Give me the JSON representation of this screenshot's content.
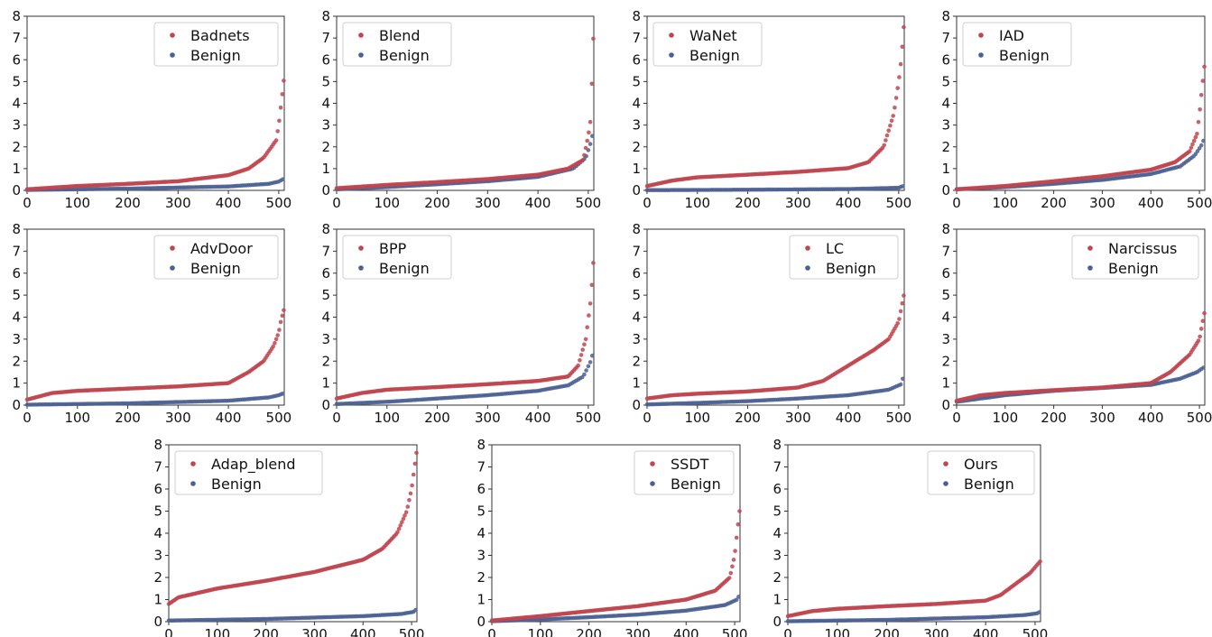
{
  "colors": {
    "backdoor": "#c0454f",
    "benign": "#4a5f93"
  },
  "chart_data": [
    {
      "type": "scatter",
      "legend": "top-right",
      "xlim": [
        0,
        511
      ],
      "ylim": [
        0,
        8
      ],
      "xticks": [
        0,
        100,
        200,
        300,
        400,
        500
      ],
      "yticks": [
        0,
        1,
        2,
        3,
        4,
        5,
        6,
        7,
        8
      ],
      "series": [
        {
          "name": "Badnets",
          "curve": [
            [
              0,
              0.05
            ],
            [
              100,
              0.2
            ],
            [
              200,
              0.3
            ],
            [
              300,
              0.42
            ],
            [
              400,
              0.7
            ],
            [
              440,
              1.0
            ],
            [
              470,
              1.5
            ],
            [
              495,
              2.3
            ],
            [
              500,
              3.0
            ],
            [
              505,
              4.0
            ],
            [
              511,
              5.25
            ]
          ]
        },
        {
          "name": "Benign",
          "curve": [
            [
              0,
              0.02
            ],
            [
              200,
              0.08
            ],
            [
              400,
              0.18
            ],
            [
              480,
              0.3
            ],
            [
              500,
              0.4
            ],
            [
              511,
              0.55
            ]
          ]
        }
      ]
    },
    {
      "type": "scatter",
      "legend": "top-left",
      "xlim": [
        0,
        511
      ],
      "ylim": [
        0,
        8
      ],
      "xticks": [
        0,
        100,
        200,
        300,
        400,
        500
      ],
      "yticks": [
        0,
        1,
        2,
        3,
        4,
        5,
        6,
        7,
        8
      ],
      "series": [
        {
          "name": "Blend",
          "curve": [
            [
              0,
              0.1
            ],
            [
              100,
              0.25
            ],
            [
              200,
              0.38
            ],
            [
              300,
              0.52
            ],
            [
              400,
              0.72
            ],
            [
              460,
              1.0
            ],
            [
              490,
              1.4
            ],
            [
              500,
              2.5
            ],
            [
              505,
              3.3
            ],
            [
              508,
              5.7
            ],
            [
              511,
              7.6
            ]
          ]
        },
        {
          "name": "Benign",
          "curve": [
            [
              0,
              0.05
            ],
            [
              100,
              0.15
            ],
            [
              200,
              0.28
            ],
            [
              300,
              0.42
            ],
            [
              400,
              0.62
            ],
            [
              470,
              1.0
            ],
            [
              495,
              1.5
            ],
            [
              505,
              2.2
            ],
            [
              511,
              2.8
            ]
          ]
        }
      ]
    },
    {
      "type": "scatter",
      "legend": "top-left",
      "xlim": [
        0,
        511
      ],
      "ylim": [
        0,
        8
      ],
      "xticks": [
        0,
        100,
        200,
        300,
        400,
        500
      ],
      "yticks": [
        0,
        1,
        2,
        3,
        4,
        5,
        6,
        7,
        8
      ],
      "series": [
        {
          "name": "WaNet",
          "curve": [
            [
              0,
              0.2
            ],
            [
              50,
              0.45
            ],
            [
              100,
              0.6
            ],
            [
              200,
              0.72
            ],
            [
              300,
              0.85
            ],
            [
              400,
              1.02
            ],
            [
              440,
              1.3
            ],
            [
              470,
              2.0
            ],
            [
              490,
              3.5
            ],
            [
              500,
              5.0
            ],
            [
              505,
              6.0
            ],
            [
              511,
              7.8
            ]
          ]
        },
        {
          "name": "Benign",
          "curve": [
            [
              0,
              0.01
            ],
            [
              200,
              0.03
            ],
            [
              400,
              0.06
            ],
            [
              500,
              0.12
            ],
            [
              511,
              0.22
            ]
          ]
        }
      ]
    },
    {
      "type": "scatter",
      "legend": "top-left",
      "xlim": [
        0,
        511
      ],
      "ylim": [
        0,
        8
      ],
      "xticks": [
        0,
        100,
        200,
        300,
        400,
        500
      ],
      "yticks": [
        0,
        1,
        2,
        3,
        4,
        5,
        6,
        7,
        8
      ],
      "series": [
        {
          "name": "IAD",
          "curve": [
            [
              0,
              0.05
            ],
            [
              100,
              0.2
            ],
            [
              200,
              0.42
            ],
            [
              300,
              0.65
            ],
            [
              400,
              0.95
            ],
            [
              450,
              1.3
            ],
            [
              480,
              1.8
            ],
            [
              495,
              2.6
            ],
            [
              500,
              3.5
            ],
            [
              505,
              4.6
            ],
            [
              511,
              5.9
            ]
          ]
        },
        {
          "name": "Benign",
          "curve": [
            [
              0,
              0.05
            ],
            [
              100,
              0.15
            ],
            [
              200,
              0.3
            ],
            [
              300,
              0.48
            ],
            [
              400,
              0.75
            ],
            [
              460,
              1.1
            ],
            [
              490,
              1.6
            ],
            [
              505,
              2.1
            ],
            [
              511,
              2.45
            ]
          ]
        }
      ]
    },
    {
      "type": "scatter",
      "legend": "top-right",
      "xlim": [
        0,
        511
      ],
      "ylim": [
        0,
        8
      ],
      "xticks": [
        0,
        100,
        200,
        300,
        400,
        500
      ],
      "yticks": [
        0,
        1,
        2,
        3,
        4,
        5,
        6,
        7,
        8
      ],
      "series": [
        {
          "name": "AdvDoor",
          "curve": [
            [
              0,
              0.25
            ],
            [
              50,
              0.55
            ],
            [
              100,
              0.65
            ],
            [
              200,
              0.75
            ],
            [
              300,
              0.85
            ],
            [
              400,
              1.0
            ],
            [
              440,
              1.5
            ],
            [
              470,
              2.0
            ],
            [
              490,
              2.7
            ],
            [
              500,
              3.3
            ],
            [
              505,
              3.9
            ],
            [
              511,
              4.4
            ]
          ]
        },
        {
          "name": "Benign",
          "curve": [
            [
              0,
              0.02
            ],
            [
              200,
              0.08
            ],
            [
              400,
              0.2
            ],
            [
              480,
              0.35
            ],
            [
              500,
              0.45
            ],
            [
              511,
              0.55
            ]
          ]
        }
      ]
    },
    {
      "type": "scatter",
      "legend": "top-left",
      "xlim": [
        0,
        511
      ],
      "ylim": [
        0,
        8
      ],
      "xticks": [
        0,
        100,
        200,
        300,
        400,
        500
      ],
      "yticks": [
        0,
        1,
        2,
        3,
        4,
        5,
        6,
        7,
        8
      ],
      "series": [
        {
          "name": "BPP",
          "curve": [
            [
              0,
              0.3
            ],
            [
              50,
              0.55
            ],
            [
              100,
              0.7
            ],
            [
              200,
              0.82
            ],
            [
              300,
              0.95
            ],
            [
              400,
              1.1
            ],
            [
              460,
              1.3
            ],
            [
              480,
              1.8
            ],
            [
              495,
              3.0
            ],
            [
              505,
              4.8
            ],
            [
              511,
              6.8
            ]
          ]
        },
        {
          "name": "Benign",
          "curve": [
            [
              0,
              0.05
            ],
            [
              100,
              0.15
            ],
            [
              200,
              0.3
            ],
            [
              300,
              0.45
            ],
            [
              400,
              0.65
            ],
            [
              460,
              0.9
            ],
            [
              490,
              1.3
            ],
            [
              505,
              2.0
            ],
            [
              511,
              2.5
            ]
          ]
        }
      ]
    },
    {
      "type": "scatter",
      "legend": "top-right",
      "xlim": [
        0,
        511
      ],
      "ylim": [
        0,
        8
      ],
      "xticks": [
        0,
        100,
        200,
        300,
        400,
        500
      ],
      "yticks": [
        0,
        1,
        2,
        3,
        4,
        5,
        6,
        7,
        8
      ],
      "series": [
        {
          "name": "LC",
          "curve": [
            [
              0,
              0.3
            ],
            [
              50,
              0.45
            ],
            [
              100,
              0.52
            ],
            [
              200,
              0.62
            ],
            [
              300,
              0.8
            ],
            [
              350,
              1.1
            ],
            [
              400,
              1.8
            ],
            [
              450,
              2.5
            ],
            [
              480,
              3.0
            ],
            [
              500,
              3.8
            ],
            [
              511,
              5.1
            ]
          ]
        },
        {
          "name": "Benign",
          "curve": [
            [
              0,
              0.03
            ],
            [
              100,
              0.1
            ],
            [
              200,
              0.18
            ],
            [
              300,
              0.3
            ],
            [
              400,
              0.45
            ],
            [
              480,
              0.7
            ],
            [
              505,
              0.95
            ],
            [
              511,
              1.45
            ]
          ]
        }
      ]
    },
    {
      "type": "scatter",
      "legend": "top-right",
      "xlim": [
        0,
        511
      ],
      "ylim": [
        0,
        8
      ],
      "xticks": [
        0,
        100,
        200,
        300,
        400,
        500
      ],
      "yticks": [
        0,
        1,
        2,
        3,
        4,
        5,
        6,
        7,
        8
      ],
      "series": [
        {
          "name": "Narcissus",
          "curve": [
            [
              0,
              0.2
            ],
            [
              50,
              0.45
            ],
            [
              100,
              0.55
            ],
            [
              200,
              0.68
            ],
            [
              300,
              0.8
            ],
            [
              400,
              1.0
            ],
            [
              440,
              1.5
            ],
            [
              480,
              2.3
            ],
            [
              500,
              3.0
            ],
            [
              511,
              4.3
            ]
          ]
        },
        {
          "name": "Benign",
          "curve": [
            [
              0,
              0.15
            ],
            [
              100,
              0.45
            ],
            [
              200,
              0.65
            ],
            [
              300,
              0.78
            ],
            [
              400,
              0.92
            ],
            [
              460,
              1.2
            ],
            [
              495,
              1.5
            ],
            [
              511,
              1.75
            ]
          ]
        }
      ]
    },
    {
      "type": "scatter",
      "legend": "top-left",
      "xlim": [
        0,
        511
      ],
      "ylim": [
        0,
        8
      ],
      "xticks": [
        0,
        100,
        200,
        300,
        400,
        500
      ],
      "yticks": [
        0,
        1,
        2,
        3,
        4,
        5,
        6,
        7,
        8
      ],
      "series": [
        {
          "name": "Adap_blend",
          "curve": [
            [
              0,
              0.8
            ],
            [
              20,
              1.1
            ],
            [
              50,
              1.25
            ],
            [
              100,
              1.5
            ],
            [
              200,
              1.85
            ],
            [
              300,
              2.25
            ],
            [
              400,
              2.8
            ],
            [
              440,
              3.3
            ],
            [
              470,
              4.0
            ],
            [
              490,
              5.0
            ],
            [
              500,
              6.0
            ],
            [
              511,
              7.8
            ]
          ]
        },
        {
          "name": "Benign",
          "curve": [
            [
              0,
              0.05
            ],
            [
              200,
              0.12
            ],
            [
              400,
              0.25
            ],
            [
              480,
              0.35
            ],
            [
              505,
              0.45
            ],
            [
              511,
              0.6
            ]
          ]
        }
      ]
    },
    {
      "type": "scatter",
      "legend": "top-right",
      "xlim": [
        0,
        511
      ],
      "ylim": [
        0,
        8
      ],
      "xticks": [
        0,
        100,
        200,
        300,
        400,
        500
      ],
      "yticks": [
        0,
        1,
        2,
        3,
        4,
        5,
        6,
        7,
        8
      ],
      "series": [
        {
          "name": "SSDT",
          "curve": [
            [
              0,
              0.05
            ],
            [
              100,
              0.25
            ],
            [
              200,
              0.48
            ],
            [
              300,
              0.7
            ],
            [
              400,
              1.0
            ],
            [
              460,
              1.4
            ],
            [
              490,
              2.0
            ],
            [
              500,
              3.0
            ],
            [
              505,
              4.0
            ],
            [
              511,
              5.2
            ]
          ]
        },
        {
          "name": "Benign",
          "curve": [
            [
              0,
              0.02
            ],
            [
              100,
              0.1
            ],
            [
              200,
              0.2
            ],
            [
              300,
              0.32
            ],
            [
              400,
              0.5
            ],
            [
              480,
              0.75
            ],
            [
              505,
              1.0
            ],
            [
              511,
              1.25
            ]
          ]
        }
      ]
    },
    {
      "type": "scatter",
      "legend": "top-right",
      "xlim": [
        0,
        511
      ],
      "ylim": [
        0,
        8
      ],
      "xticks": [
        0,
        100,
        200,
        300,
        400,
        500
      ],
      "yticks": [
        0,
        1,
        2,
        3,
        4,
        5,
        6,
        7,
        8
      ],
      "series": [
        {
          "name": "Ours",
          "curve": [
            [
              0,
              0.25
            ],
            [
              50,
              0.48
            ],
            [
              100,
              0.58
            ],
            [
              200,
              0.7
            ],
            [
              300,
              0.8
            ],
            [
              400,
              0.95
            ],
            [
              430,
              1.2
            ],
            [
              460,
              1.7
            ],
            [
              490,
              2.2
            ],
            [
              511,
              2.75
            ]
          ]
        },
        {
          "name": "Benign",
          "curve": [
            [
              0,
              0.02
            ],
            [
              200,
              0.08
            ],
            [
              400,
              0.2
            ],
            [
              480,
              0.3
            ],
            [
              505,
              0.38
            ],
            [
              511,
              0.48
            ]
          ]
        }
      ]
    }
  ]
}
